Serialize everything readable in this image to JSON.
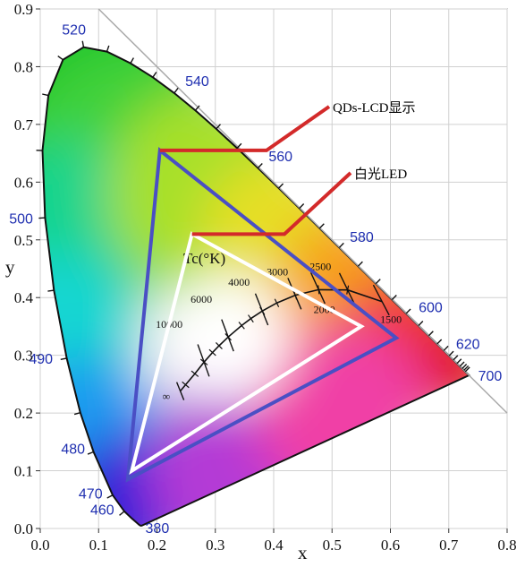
{
  "chart_data": {
    "type": "chromaticity-diagram",
    "xlabel": "x",
    "ylabel": "y",
    "xlim": [
      0.0,
      0.8
    ],
    "ylim": [
      0.0,
      0.9
    ],
    "x_ticks": [
      "0.0",
      "0.1",
      "0.2",
      "0.3",
      "0.4",
      "0.5",
      "0.6",
      "0.7",
      "0.8"
    ],
    "y_ticks": [
      "0.0",
      "0.1",
      "0.2",
      "0.3",
      "0.4",
      "0.5",
      "0.6",
      "0.7",
      "0.8",
      "0.9"
    ],
    "grid": true,
    "wavelength_labels": [
      {
        "text": "380",
        "x": 0.174,
        "y": 0.005
      },
      {
        "text": "460",
        "x": 0.144,
        "y": 0.03
      },
      {
        "text": "470",
        "x": 0.124,
        "y": 0.058
      },
      {
        "text": "480",
        "x": 0.091,
        "y": 0.133
      },
      {
        "text": "490",
        "x": 0.045,
        "y": 0.295
      },
      {
        "text": "500",
        "x": 0.008,
        "y": 0.538
      },
      {
        "text": "520",
        "x": 0.074,
        "y": 0.834
      },
      {
        "text": "540",
        "x": 0.23,
        "y": 0.754
      },
      {
        "text": "560",
        "x": 0.373,
        "y": 0.624
      },
      {
        "text": "580",
        "x": 0.512,
        "y": 0.487
      },
      {
        "text": "600",
        "x": 0.627,
        "y": 0.372
      },
      {
        "text": "620",
        "x": 0.691,
        "y": 0.308
      },
      {
        "text": "700",
        "x": 0.735,
        "y": 0.265
      }
    ],
    "spectral_locus": [
      [
        0.1741,
        0.005
      ],
      [
        0.1738,
        0.005
      ],
      [
        0.1733,
        0.0048
      ],
      [
        0.1726,
        0.0048
      ],
      [
        0.1714,
        0.0051
      ],
      [
        0.1689,
        0.0069
      ],
      [
        0.1644,
        0.0109
      ],
      [
        0.1566,
        0.0177
      ],
      [
        0.144,
        0.0297
      ],
      [
        0.1241,
        0.0578
      ],
      [
        0.0913,
        0.1327
      ],
      [
        0.0687,
        0.2007
      ],
      [
        0.0454,
        0.295
      ],
      [
        0.0235,
        0.4127
      ],
      [
        0.0082,
        0.5384
      ],
      [
        0.0039,
        0.6548
      ],
      [
        0.0139,
        0.7502
      ],
      [
        0.0389,
        0.812
      ],
      [
        0.0743,
        0.8338
      ],
      [
        0.1142,
        0.8262
      ],
      [
        0.1547,
        0.8059
      ],
      [
        0.1929,
        0.7816
      ],
      [
        0.2296,
        0.7543
      ],
      [
        0.2658,
        0.7243
      ],
      [
        0.3016,
        0.6923
      ],
      [
        0.3373,
        0.6589
      ],
      [
        0.3731,
        0.6245
      ],
      [
        0.4087,
        0.5896
      ],
      [
        0.4441,
        0.5547
      ],
      [
        0.4788,
        0.5202
      ],
      [
        0.5125,
        0.4866
      ],
      [
        0.5448,
        0.4544
      ],
      [
        0.5752,
        0.4242
      ],
      [
        0.6029,
        0.3965
      ],
      [
        0.627,
        0.3725
      ],
      [
        0.6482,
        0.3514
      ],
      [
        0.6658,
        0.334
      ],
      [
        0.6801,
        0.3197
      ],
      [
        0.6915,
        0.3083
      ],
      [
        0.7006,
        0.2993
      ],
      [
        0.7079,
        0.292
      ],
      [
        0.714,
        0.2859
      ],
      [
        0.719,
        0.2809
      ],
      [
        0.723,
        0.277
      ],
      [
        0.726,
        0.274
      ],
      [
        0.7283,
        0.2717
      ],
      [
        0.73,
        0.27
      ],
      [
        0.7347,
        0.2653
      ]
    ],
    "planckian_locus": [
      [
        0.5857,
        0.3931
      ],
      [
        0.5267,
        0.4133
      ],
      [
        0.477,
        0.4137
      ],
      [
        0.4369,
        0.4041
      ],
      [
        0.4053,
        0.3907
      ],
      [
        0.3805,
        0.3768
      ],
      [
        0.3608,
        0.3636
      ],
      [
        0.3451,
        0.3516
      ],
      [
        0.3221,
        0.3318
      ],
      [
        0.3064,
        0.3166
      ],
      [
        0.2952,
        0.3048
      ],
      [
        0.2807,
        0.2883
      ],
      [
        0.265,
        0.268
      ],
      [
        0.249,
        0.249
      ],
      [
        0.24,
        0.238
      ]
    ],
    "cct_isotherms": [
      {
        "label": "1500",
        "x": 0.5857,
        "y": 0.3931
      },
      {
        "label": "2000",
        "x": 0.5267,
        "y": 0.4133
      },
      {
        "label": "2500",
        "x": 0.477,
        "y": 0.4137
      },
      {
        "label": "3000",
        "x": 0.4369,
        "y": 0.4041
      },
      {
        "label": "4000",
        "x": 0.3805,
        "y": 0.3768
      },
      {
        "label": "6000",
        "x": 0.3221,
        "y": 0.3318
      },
      {
        "label": "10000",
        "x": 0.2807,
        "y": 0.2883
      },
      {
        "label": "∞",
        "x": 0.24,
        "y": 0.238
      }
    ],
    "cct_title": "Tc(°K)",
    "series": [
      {
        "name": "QDs-LCD显示",
        "color": "#4a4fc4",
        "vertices": [
          [
            0.205,
            0.655
          ],
          [
            0.61,
            0.33
          ],
          [
            0.15,
            0.085
          ]
        ]
      },
      {
        "name": "白光LED",
        "color": "#ffffff",
        "vertices": [
          [
            0.26,
            0.51
          ],
          [
            0.55,
            0.35
          ],
          [
            0.157,
            0.1
          ]
        ]
      }
    ]
  },
  "callouts": {
    "qd": {
      "label": "QDs-LCD显示",
      "color": "#d32a2a"
    },
    "led": {
      "label": "白光LED",
      "color": "#d32a2a"
    }
  }
}
